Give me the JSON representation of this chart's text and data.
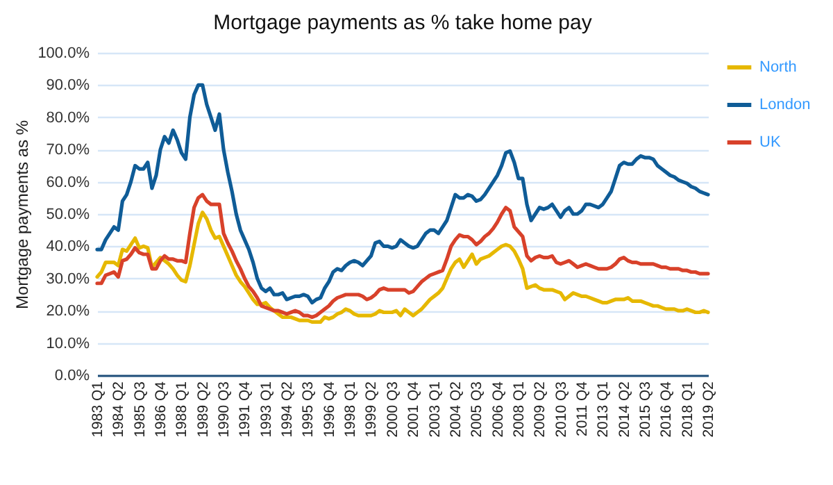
{
  "chart_data": {
    "type": "line",
    "title": "Mortgage payments as % take home pay",
    "ylabel": "Mortgage payments as %",
    "categories": [
      "1983 Q1",
      null,
      null,
      null,
      null,
      "1984 Q2",
      null,
      null,
      null,
      null,
      "1985 Q3",
      null,
      null,
      null,
      null,
      "1986 Q4",
      null,
      null,
      null,
      null,
      "1988 Q1",
      null,
      null,
      null,
      null,
      "1989 Q2",
      null,
      null,
      null,
      null,
      "1990 Q3",
      null,
      null,
      null,
      null,
      "1991 Q4",
      null,
      null,
      null,
      null,
      "1993 Q1",
      null,
      null,
      null,
      null,
      "1994 Q2",
      null,
      null,
      null,
      null,
      "1995 Q3",
      null,
      null,
      null,
      null,
      "1996 Q4",
      null,
      null,
      null,
      null,
      "1998 Q1",
      null,
      null,
      null,
      null,
      "1999 Q2",
      null,
      null,
      null,
      null,
      "2000 Q3",
      null,
      null,
      null,
      null,
      "2001 Q4",
      null,
      null,
      null,
      null,
      "2003 Q1",
      null,
      null,
      null,
      null,
      "2004 Q2",
      null,
      null,
      null,
      null,
      "2005 Q3",
      null,
      null,
      null,
      null,
      "2006 Q4",
      null,
      null,
      null,
      null,
      "2008 Q1",
      null,
      null,
      null,
      null,
      "2009 Q2",
      null,
      null,
      null,
      null,
      "2010 Q3",
      null,
      null,
      null,
      null,
      "2011 Q4",
      null,
      null,
      null,
      null,
      "2013 Q1",
      null,
      null,
      null,
      null,
      "2014 Q2",
      null,
      null,
      null,
      null,
      "2015 Q3",
      null,
      null,
      null,
      null,
      "2016 Q4",
      null,
      null,
      null,
      null,
      "2018 Q1",
      null,
      null,
      null,
      null,
      "2019 Q2"
    ],
    "series": [
      {
        "name": "North",
        "color": "#e6b800",
        "values": [
          30.5,
          32,
          35,
          35,
          35,
          34,
          39,
          38.5,
          40.5,
          42.5,
          39.5,
          40,
          39.5,
          33.5,
          35,
          36.5,
          35.5,
          34.5,
          33,
          31,
          29.5,
          29,
          34,
          40.5,
          47,
          50.5,
          48.5,
          45,
          42.5,
          43,
          40,
          37,
          34,
          31,
          29,
          27.5,
          25.5,
          23.5,
          22,
          22,
          22.5,
          21,
          20,
          19,
          18,
          18,
          18,
          17.5,
          17,
          17,
          17,
          16.5,
          16.5,
          16.5,
          18,
          17.5,
          18,
          19,
          19.5,
          20.5,
          20,
          19,
          18.5,
          18.5,
          18.5,
          18.5,
          19,
          20,
          19.5,
          19.5,
          19.5,
          20,
          18.5,
          20.5,
          19.5,
          18.5,
          19.5,
          20.5,
          22,
          23.5,
          24.5,
          25.5,
          27,
          30,
          33,
          35,
          36,
          33.5,
          35.5,
          37.5,
          34.5,
          36,
          36.5,
          37,
          38,
          39,
          40,
          40.5,
          40,
          38.5,
          36,
          33,
          27,
          27.5,
          28,
          27,
          26.5,
          26.5,
          26.5,
          26,
          25.5,
          23.5,
          24.5,
          25.5,
          25,
          24.5,
          24.5,
          24,
          23.5,
          23,
          22.5,
          22.5,
          23,
          23.5,
          23.5,
          23.5,
          24,
          23,
          23,
          23,
          22.5,
          22,
          21.5,
          21.5,
          21,
          20.5,
          20.5,
          20.5,
          20,
          20,
          20.5,
          20,
          19.5,
          19.5,
          20,
          19.5
        ]
      },
      {
        "name": "London",
        "color": "#0f5c97",
        "values": [
          39,
          39,
          42,
          44,
          46,
          45,
          54,
          56,
          60,
          65,
          64,
          64,
          66,
          58,
          62,
          70,
          74,
          72,
          76,
          73,
          69,
          67,
          80,
          87,
          90,
          90,
          84,
          80,
          76,
          81,
          70,
          63,
          57,
          50,
          45,
          42,
          39,
          35,
          30,
          27,
          26,
          27,
          25,
          25,
          25.5,
          23.5,
          24,
          24.5,
          24.5,
          25,
          24.5,
          22.5,
          23.5,
          24,
          27,
          29,
          32,
          33,
          32.5,
          34,
          35,
          35.5,
          35,
          34,
          35.5,
          37,
          41,
          41.5,
          40,
          40,
          39.5,
          40,
          42,
          41,
          40,
          39.5,
          40,
          42,
          44,
          45,
          45,
          44,
          46,
          48,
          52,
          56,
          55,
          55,
          56,
          55.5,
          54,
          54.5,
          56,
          58,
          60,
          62,
          65,
          69,
          69.5,
          66,
          61,
          61,
          53,
          48,
          50,
          52,
          51.5,
          52,
          53,
          51,
          49,
          51,
          52,
          50,
          50,
          51,
          53,
          53,
          52.5,
          52,
          53,
          55,
          57,
          61,
          65,
          66,
          65.5,
          65.5,
          67,
          68,
          67.5,
          67.5,
          67,
          65,
          64,
          63,
          62,
          61.5,
          60.5,
          60,
          59.5,
          58.5,
          58,
          57,
          56.5,
          56
        ]
      },
      {
        "name": "UK",
        "color": "#d8412a",
        "values": [
          28.5,
          28.5,
          31,
          31.5,
          32,
          30.5,
          35.5,
          36,
          37.5,
          39.5,
          38,
          37.5,
          37.5,
          33,
          33,
          35.5,
          37,
          36,
          36,
          35.5,
          35.5,
          35,
          44,
          52,
          55,
          56,
          54,
          53,
          53,
          53,
          44,
          41,
          38.5,
          35.5,
          33,
          30,
          27.5,
          26,
          24,
          21.5,
          21,
          20.5,
          20,
          20,
          19.5,
          19,
          19.5,
          20,
          19.5,
          18.5,
          18.5,
          18,
          18.5,
          19.5,
          20.5,
          21.5,
          23,
          24,
          24.5,
          25,
          25,
          25,
          25,
          24.5,
          23.5,
          24,
          25,
          26.5,
          27,
          26.5,
          26.5,
          26.5,
          26.5,
          26.5,
          25.5,
          26,
          27.5,
          29,
          30,
          31,
          31.5,
          32,
          32.5,
          36,
          40,
          42,
          43.5,
          43,
          43,
          42,
          40.5,
          41.5,
          43,
          44,
          45.5,
          47.5,
          50,
          52,
          51,
          46,
          44.5,
          43,
          37,
          35.5,
          36.5,
          37,
          36.5,
          36.5,
          37,
          35,
          34.5,
          35,
          35.5,
          34.5,
          33.5,
          34,
          34.5,
          34,
          33.5,
          33,
          33,
          33,
          33.5,
          34.5,
          36,
          36.5,
          35.5,
          35,
          35,
          34.5,
          34.5,
          34.5,
          34.5,
          34,
          33.5,
          33.5,
          33,
          33,
          33,
          32.5,
          32.5,
          32,
          32,
          31.5,
          31.5,
          31.5
        ]
      }
    ],
    "ylim": [
      0,
      100
    ],
    "yticks": [
      {
        "value": 0,
        "label": "0.0%"
      },
      {
        "value": 10,
        "label": "10.0%"
      },
      {
        "value": 20,
        "label": "20.0%"
      },
      {
        "value": 30,
        "label": "30.0%"
      },
      {
        "value": 40,
        "label": "40.0%"
      },
      {
        "value": 50,
        "label": "50.0%"
      },
      {
        "value": 60,
        "label": "60.0%"
      },
      {
        "value": 70,
        "label": "70.0%"
      },
      {
        "value": 80,
        "label": "80.0%"
      },
      {
        "value": 90,
        "label": "90.0%"
      },
      {
        "value": 100,
        "label": "100.0%"
      }
    ],
    "grid": "y",
    "legend": "right",
    "line_style": "solid"
  }
}
